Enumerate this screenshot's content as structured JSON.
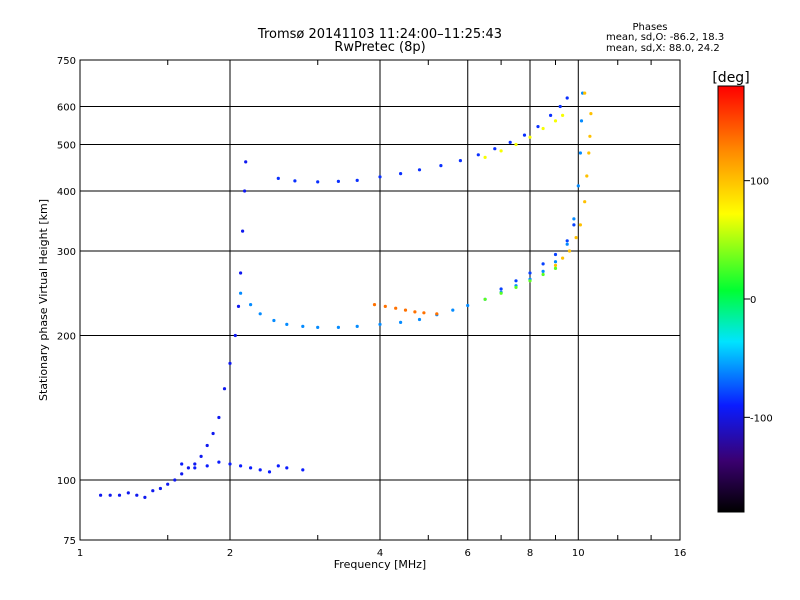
{
  "header": {
    "title": "Tromsø 20141103 11:24:00–11:25:43",
    "subtitle": "RwPretec (8p)"
  },
  "phase_info": {
    "heading": "Phases",
    "o_line": "mean, sd,O: -86.2, 18.3",
    "x_line": "mean, sd,X:  88.0, 24.2"
  },
  "colorbar": {
    "label": "[deg]",
    "ticks": [
      "100",
      "0",
      "-100"
    ],
    "tick_values": [
      100,
      0,
      -100
    ],
    "range": [
      -180,
      180
    ]
  },
  "chart_data": {
    "type": "scatter",
    "title": "",
    "xlabel": "Frequency [MHz]",
    "ylabel": "Stationary phase Virtual Height [km]",
    "x_scale": "log",
    "y_scale": "log",
    "xlim": [
      1,
      16
    ],
    "ylim": [
      75,
      750
    ],
    "x_ticks": [
      1,
      2,
      4,
      6,
      8,
      10,
      16
    ],
    "x_tick_labels": [
      "1",
      "2",
      "4",
      "6",
      "8",
      "10",
      "16"
    ],
    "y_ticks": [
      75,
      100,
      200,
      300,
      400,
      500,
      600,
      750
    ],
    "y_tick_labels": [
      "75",
      "100",
      "200",
      "300",
      "400",
      "500",
      "600",
      "750"
    ],
    "grid": true,
    "color_scale": "rainbow phase, deg",
    "series": [
      {
        "color": "blue",
        "phase": -95,
        "points": [
          [
            1.1,
            93
          ],
          [
            1.15,
            93
          ],
          [
            1.2,
            93
          ],
          [
            1.25,
            94
          ],
          [
            1.3,
            93
          ],
          [
            1.35,
            92
          ],
          [
            1.4,
            95
          ],
          [
            1.45,
            96
          ],
          [
            1.5,
            98
          ],
          [
            1.55,
            100
          ],
          [
            1.6,
            103
          ],
          [
            1.65,
            106
          ],
          [
            1.7,
            108
          ],
          [
            1.75,
            112
          ],
          [
            1.8,
            118
          ],
          [
            1.85,
            125
          ],
          [
            1.9,
            135
          ],
          [
            1.95,
            155
          ],
          [
            2.0,
            175
          ],
          [
            2.05,
            200
          ],
          [
            2.08,
            230
          ],
          [
            2.1,
            270
          ],
          [
            2.12,
            330
          ],
          [
            2.14,
            400
          ],
          [
            2.15,
            460
          ]
        ]
      },
      {
        "color": "blue",
        "phase": -90,
        "points": [
          [
            1.6,
            108
          ],
          [
            1.7,
            106
          ],
          [
            1.8,
            107
          ],
          [
            1.9,
            109
          ],
          [
            2.0,
            108
          ],
          [
            2.1,
            107
          ],
          [
            2.2,
            106
          ],
          [
            2.3,
            105
          ],
          [
            2.4,
            104
          ],
          [
            2.5,
            107
          ],
          [
            2.6,
            106
          ],
          [
            2.8,
            105
          ]
        ]
      },
      {
        "color": "light-blue",
        "phase": -60,
        "points": [
          [
            2.1,
            245
          ],
          [
            2.2,
            232
          ],
          [
            2.3,
            222
          ],
          [
            2.45,
            215
          ],
          [
            2.6,
            211
          ],
          [
            2.8,
            209
          ],
          [
            3.0,
            208
          ],
          [
            3.3,
            208
          ],
          [
            3.6,
            209
          ],
          [
            4.0,
            211
          ],
          [
            4.4,
            213
          ],
          [
            4.8,
            216
          ],
          [
            5.2,
            221
          ],
          [
            5.6,
            226
          ],
          [
            6.0,
            231
          ],
          [
            6.5,
            238
          ],
          [
            7.0,
            246
          ],
          [
            7.5,
            254
          ],
          [
            8.0,
            262
          ],
          [
            8.5,
            272
          ],
          [
            9.0,
            285
          ],
          [
            9.5,
            310
          ],
          [
            9.8,
            350
          ],
          [
            10.0,
            410
          ],
          [
            10.1,
            480
          ],
          [
            10.15,
            560
          ],
          [
            10.2,
            640
          ]
        ]
      },
      {
        "color": "orange",
        "phase": 135,
        "points": [
          [
            3.9,
            232
          ],
          [
            4.1,
            230
          ],
          [
            4.3,
            228
          ],
          [
            4.5,
            226
          ],
          [
            4.7,
            224
          ],
          [
            4.9,
            223
          ],
          [
            5.2,
            222
          ]
        ]
      },
      {
        "color": "blue",
        "phase": -85,
        "points": [
          [
            2.5,
            425
          ],
          [
            2.7,
            420
          ],
          [
            3.0,
            418
          ],
          [
            3.3,
            419
          ],
          [
            3.6,
            421
          ],
          [
            4.0,
            428
          ],
          [
            4.4,
            435
          ],
          [
            4.8,
            443
          ],
          [
            5.3,
            452
          ],
          [
            5.8,
            463
          ],
          [
            6.3,
            476
          ],
          [
            6.8,
            490
          ],
          [
            7.3,
            505
          ],
          [
            7.8,
            523
          ],
          [
            8.3,
            545
          ],
          [
            8.8,
            575
          ],
          [
            9.2,
            600
          ],
          [
            9.5,
            625
          ]
        ]
      },
      {
        "color": "green-yellow",
        "phase": 70,
        "points": [
          [
            6.5,
            470
          ],
          [
            7.0,
            485
          ],
          [
            7.5,
            500
          ],
          [
            8.0,
            518
          ],
          [
            8.5,
            540
          ],
          [
            9.0,
            560
          ],
          [
            9.3,
            575
          ]
        ]
      },
      {
        "color": "yellow",
        "phase": 100,
        "points": [
          [
            9.0,
            280
          ],
          [
            9.3,
            290
          ],
          [
            9.6,
            300
          ],
          [
            9.9,
            320
          ],
          [
            10.1,
            340
          ],
          [
            10.3,
            380
          ],
          [
            10.4,
            430
          ],
          [
            10.5,
            480
          ],
          [
            10.55,
            520
          ],
          [
            10.6,
            580
          ],
          [
            10.3,
            640
          ]
        ]
      },
      {
        "color": "green",
        "phase": 30,
        "points": [
          [
            6.5,
            238
          ],
          [
            7.0,
            245
          ],
          [
            7.5,
            252
          ],
          [
            8.0,
            260
          ],
          [
            8.5,
            268
          ],
          [
            9.0,
            276
          ]
        ]
      },
      {
        "color": "blue",
        "phase": -80,
        "points": [
          [
            7.0,
            250
          ],
          [
            7.5,
            260
          ],
          [
            8.0,
            270
          ],
          [
            8.5,
            282
          ],
          [
            9.0,
            295
          ],
          [
            9.5,
            315
          ],
          [
            9.8,
            340
          ]
        ]
      }
    ]
  }
}
